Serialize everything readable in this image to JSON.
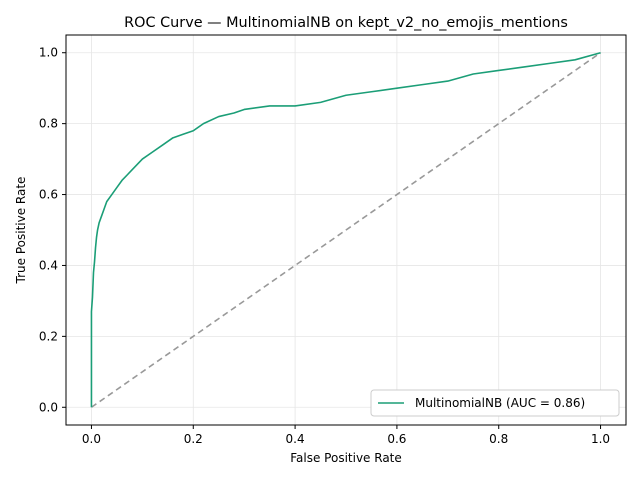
{
  "chart_data": {
    "type": "line",
    "title": "ROC Curve — MultinomialNB on kept_v2_no_emojis_mentions",
    "xlabel": "False Positive Rate",
    "ylabel": "True Positive Rate",
    "xlim": [
      -0.05,
      1.05
    ],
    "ylim": [
      -0.05,
      1.05
    ],
    "xticks": [
      "0.0",
      "0.2",
      "0.4",
      "0.6",
      "0.8",
      "1.0"
    ],
    "yticks": [
      "0.0",
      "0.2",
      "0.4",
      "0.6",
      "0.8",
      "1.0"
    ],
    "grid": true,
    "legend_position": "lower-right",
    "series": [
      {
        "name": "MultinomialNB (AUC = 0.86)",
        "color": "#1b9e77",
        "x": [
          0,
          0,
          0.002,
          0.004,
          0.006,
          0.008,
          0.01,
          0.012,
          0.015,
          0.02,
          0.025,
          0.03,
          0.04,
          0.05,
          0.06,
          0.08,
          0.1,
          0.12,
          0.14,
          0.16,
          0.18,
          0.2,
          0.22,
          0.25,
          0.28,
          0.3,
          0.35,
          0.4,
          0.45,
          0.5,
          0.55,
          0.6,
          0.65,
          0.7,
          0.75,
          0.8,
          0.85,
          0.9,
          0.95,
          1.0
        ],
        "y": [
          0,
          0.27,
          0.31,
          0.38,
          0.41,
          0.45,
          0.48,
          0.5,
          0.52,
          0.54,
          0.56,
          0.58,
          0.6,
          0.62,
          0.64,
          0.67,
          0.7,
          0.72,
          0.74,
          0.76,
          0.77,
          0.78,
          0.8,
          0.82,
          0.83,
          0.84,
          0.85,
          0.85,
          0.86,
          0.88,
          0.89,
          0.9,
          0.91,
          0.92,
          0.94,
          0.95,
          0.96,
          0.97,
          0.98,
          1.0
        ]
      },
      {
        "name": "",
        "color": "#999999",
        "dashed": true,
        "x": [
          0,
          1
        ],
        "y": [
          0,
          1
        ]
      }
    ]
  }
}
